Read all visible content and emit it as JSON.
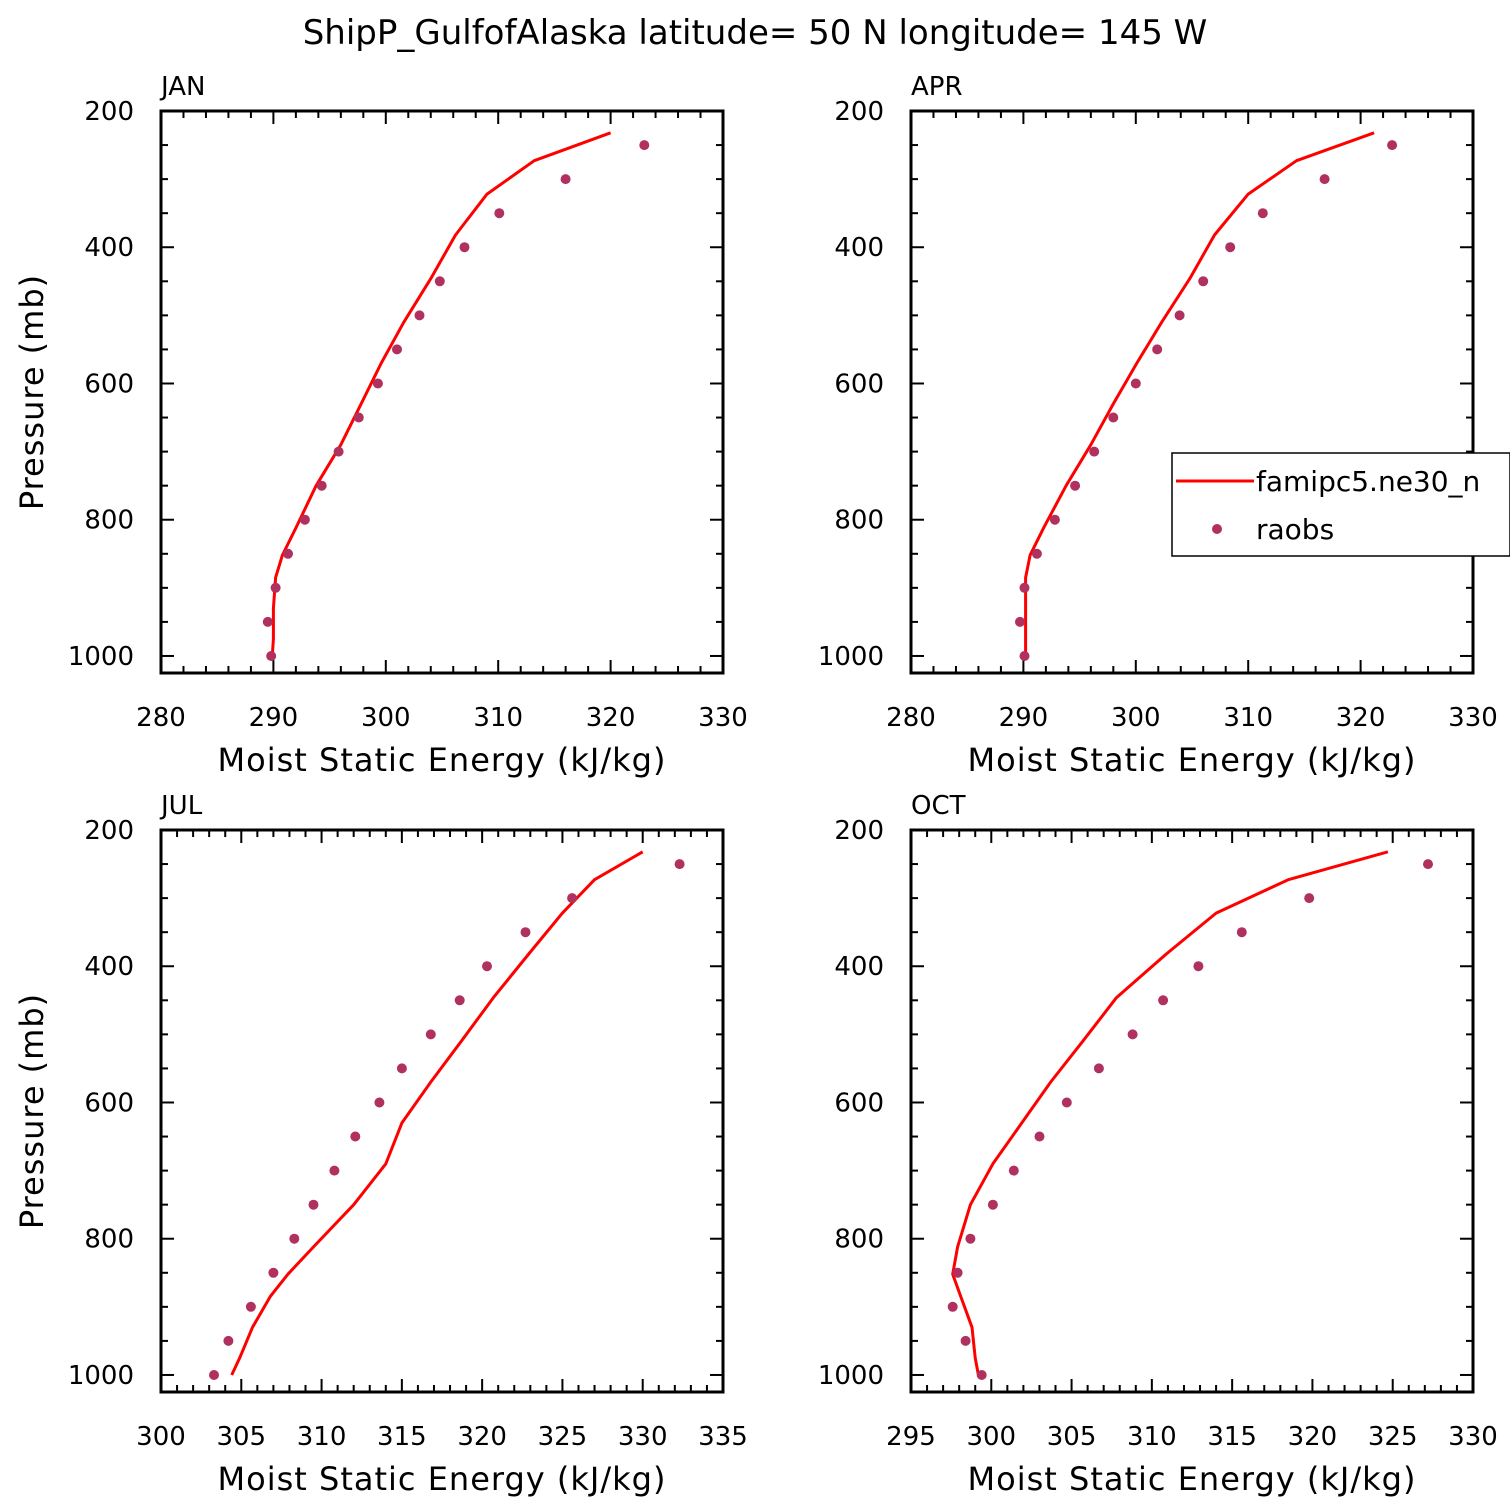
{
  "title": "ShipP_GulfofAlaska  latitude= 50 N longitude= 145 W",
  "colors": {
    "model": "#ff0000",
    "obs": "#b03060",
    "axis": "#000000"
  },
  "legend": {
    "model_label": "famipc5.ne30_n",
    "obs_label": "raobs"
  },
  "chart_data": [
    {
      "type": "line",
      "panel": "JAN",
      "xlabel": "Moist Static Energy (kJ/kg)",
      "ylabel": "Pressure (mb)",
      "xlim": [
        280,
        330
      ],
      "ylim": [
        1025,
        200
      ],
      "xticks": [
        280,
        290,
        300,
        310,
        320,
        330
      ],
      "yticks": [
        200,
        400,
        600,
        800,
        1000
      ],
      "series": [
        {
          "name": "famipc5.ne30_n",
          "style": "line",
          "x": [
            320.0,
            313.2,
            309.0,
            306.2,
            304.0,
            301.6,
            299.6,
            297.8,
            296.0,
            293.8,
            292.0,
            290.8,
            290.2,
            290.0,
            290.0,
            289.9
          ],
          "y": [
            232,
            273,
            322,
            382,
            446,
            510,
            570,
            630,
            690,
            750,
            812,
            852,
            885,
            930,
            975,
            1000
          ]
        },
        {
          "name": "raobs",
          "style": "markers",
          "x": [
            323.0,
            316.0,
            310.1,
            307.0,
            304.8,
            303.0,
            301.0,
            299.3,
            297.6,
            295.8,
            294.3,
            292.8,
            291.3,
            290.2,
            289.5,
            289.8
          ],
          "y": [
            250,
            300,
            350,
            400,
            450,
            500,
            550,
            600,
            650,
            700,
            750,
            800,
            850,
            900,
            950,
            1000
          ]
        }
      ]
    },
    {
      "type": "line",
      "panel": "APR",
      "xlabel": "Moist Static Energy (kJ/kg)",
      "ylabel": "",
      "xlim": [
        280,
        330
      ],
      "ylim": [
        1025,
        200
      ],
      "xticks": [
        280,
        290,
        300,
        310,
        320,
        330
      ],
      "yticks": [
        200,
        400,
        600,
        800,
        1000
      ],
      "series": [
        {
          "name": "famipc5.ne30_n",
          "style": "line",
          "x": [
            321.2,
            314.3,
            310.0,
            307.0,
            304.8,
            302.3,
            300.1,
            298.0,
            296.0,
            293.8,
            291.8,
            290.6,
            290.2,
            290.2,
            290.2,
            290.2
          ],
          "y": [
            232,
            273,
            322,
            382,
            446,
            510,
            570,
            630,
            690,
            750,
            812,
            852,
            885,
            930,
            975,
            1000
          ]
        },
        {
          "name": "raobs",
          "style": "markers",
          "x": [
            322.8,
            316.8,
            311.3,
            308.4,
            306.0,
            303.9,
            301.9,
            300.0,
            298.0,
            296.3,
            294.6,
            292.8,
            291.2,
            290.1,
            289.7,
            290.1
          ],
          "y": [
            250,
            300,
            350,
            400,
            450,
            500,
            550,
            600,
            650,
            700,
            750,
            800,
            850,
            900,
            950,
            1000
          ]
        }
      ]
    },
    {
      "type": "line",
      "panel": "JUL",
      "xlabel": "Moist Static Energy (kJ/kg)",
      "ylabel": "Pressure (mb)",
      "xlim": [
        300,
        335
      ],
      "ylim": [
        1025,
        200
      ],
      "xticks": [
        300,
        305,
        310,
        315,
        320,
        325,
        330,
        335
      ],
      "yticks": [
        200,
        400,
        600,
        800,
        1000
      ],
      "series": [
        {
          "name": "famipc5.ne30_n",
          "style": "line",
          "x": [
            330.0,
            327.0,
            325.0,
            322.9,
            320.7,
            318.7,
            316.8,
            315.0,
            314.0,
            312.0,
            309.5,
            307.9,
            306.8,
            305.7,
            304.9,
            304.4
          ],
          "y": [
            232,
            273,
            322,
            382,
            446,
            510,
            570,
            630,
            690,
            750,
            812,
            852,
            885,
            930,
            975,
            1000
          ]
        },
        {
          "name": "raobs",
          "style": "markers",
          "x": [
            332.3,
            325.6,
            322.7,
            320.3,
            318.6,
            316.8,
            315.0,
            313.6,
            312.1,
            310.8,
            309.5,
            308.3,
            307.0,
            305.6,
            304.2,
            303.3
          ],
          "y": [
            250,
            300,
            350,
            400,
            450,
            500,
            550,
            600,
            650,
            700,
            750,
            800,
            850,
            900,
            950,
            1000
          ]
        }
      ]
    },
    {
      "type": "line",
      "panel": "OCT",
      "xlabel": "Moist Static Energy (kJ/kg)",
      "ylabel": "",
      "xlim": [
        295,
        330
      ],
      "ylim": [
        1025,
        200
      ],
      "xticks": [
        295,
        300,
        305,
        310,
        315,
        320,
        325,
        330
      ],
      "yticks": [
        200,
        400,
        600,
        800,
        1000
      ],
      "series": [
        {
          "name": "famipc5.ne30_n",
          "style": "line",
          "x": [
            324.7,
            318.5,
            314.0,
            310.9,
            307.8,
            305.7,
            303.7,
            301.9,
            300.1,
            298.7,
            297.9,
            297.6,
            298.1,
            298.8,
            299.0,
            299.2
          ],
          "y": [
            232,
            273,
            322,
            382,
            446,
            510,
            570,
            630,
            690,
            750,
            812,
            852,
            885,
            930,
            975,
            1000
          ]
        },
        {
          "name": "raobs",
          "style": "markers",
          "x": [
            327.2,
            319.8,
            315.6,
            312.9,
            310.7,
            308.8,
            306.7,
            304.7,
            303.0,
            301.4,
            300.1,
            298.7,
            297.9,
            297.6,
            298.4,
            299.4
          ],
          "y": [
            250,
            300,
            350,
            400,
            450,
            500,
            550,
            600,
            650,
            700,
            750,
            800,
            850,
            900,
            950,
            1000
          ]
        }
      ]
    }
  ]
}
